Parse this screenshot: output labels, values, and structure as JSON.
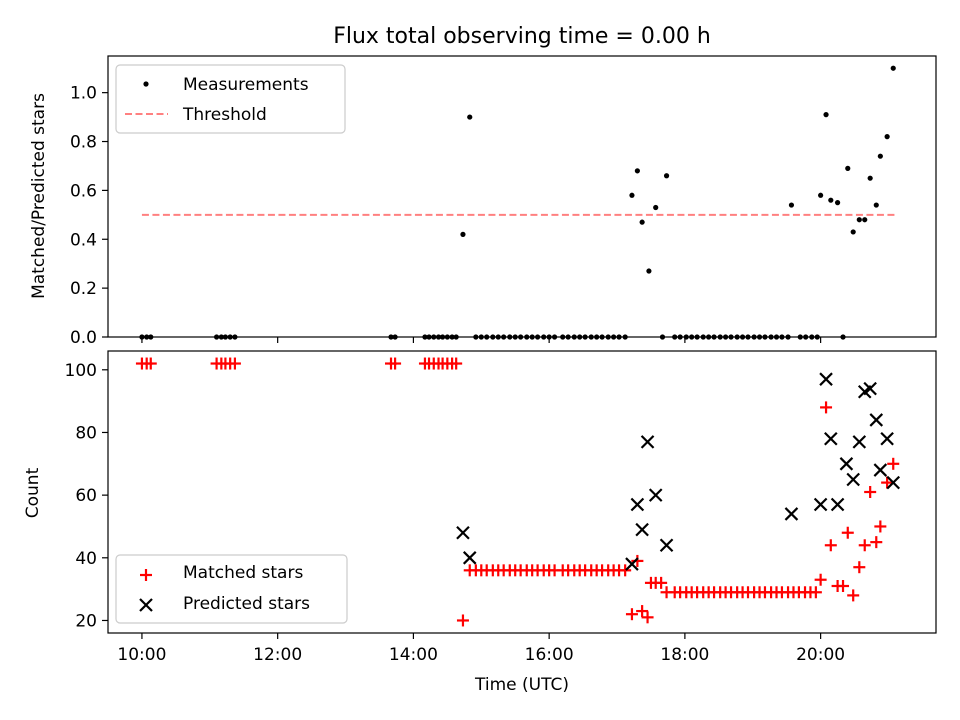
{
  "chart_data": [
    {
      "type": "scatter",
      "title": "Flux total observing time = 0.00 h",
      "xlabel": "",
      "ylabel": "Matched/Predicted stars",
      "xlim": [
        9.5,
        21.7
      ],
      "ylim": [
        0,
        1.15
      ],
      "xticks": [
        10,
        12,
        14,
        16,
        18,
        20
      ],
      "yticks": [
        0.0,
        0.2,
        0.4,
        0.6,
        0.8,
        1.0
      ],
      "ytick_labels": [
        "0.0",
        "0.2",
        "0.4",
        "0.6",
        "0.8",
        "1.0"
      ],
      "legend": {
        "placement": "top-left",
        "entries": [
          "Measurements",
          "Threshold"
        ]
      },
      "threshold": {
        "name": "Threshold",
        "value": 0.5,
        "x_range": [
          10.0,
          21.1
        ],
        "color": "#ff8080"
      },
      "series": [
        {
          "name": "Measurements",
          "color": "#000000",
          "marker": "dot",
          "x": [
            10.0,
            10.07,
            10.13,
            11.1,
            11.17,
            11.23,
            11.3,
            11.37,
            13.67,
            13.73,
            14.17,
            14.23,
            14.3,
            14.37,
            14.43,
            14.5,
            14.57,
            14.63,
            14.73,
            14.83,
            14.92,
            15.0,
            15.08,
            15.17,
            15.25,
            15.33,
            15.42,
            15.5,
            15.58,
            15.67,
            15.75,
            15.83,
            15.92,
            16.0,
            16.08,
            16.2,
            16.28,
            16.37,
            16.45,
            16.53,
            16.62,
            16.7,
            16.78,
            16.87,
            16.95,
            17.03,
            17.12,
            17.22,
            17.3,
            17.37,
            17.47,
            17.57,
            17.67,
            17.73,
            17.85,
            17.93,
            18.02,
            18.1,
            18.18,
            18.27,
            18.35,
            18.43,
            18.52,
            18.6,
            18.68,
            18.77,
            18.85,
            18.93,
            19.02,
            19.1,
            19.18,
            19.27,
            19.35,
            19.43,
            19.52,
            19.57,
            19.7,
            19.78,
            19.87,
            19.95,
            20.0,
            20.08,
            20.15,
            20.25,
            20.33,
            20.4,
            20.48,
            20.57,
            20.65,
            20.73,
            20.82,
            20.88,
            20.98,
            21.07
          ],
          "y": [
            0.0,
            0.0,
            0.0,
            0.0,
            0.0,
            0.0,
            0.0,
            0.0,
            0.0,
            0.0,
            0.0,
            0.0,
            0.0,
            0.0,
            0.0,
            0.0,
            0.0,
            0.0,
            0.42,
            0.9,
            0.0,
            0.0,
            0.0,
            0.0,
            0.0,
            0.0,
            0.0,
            0.0,
            0.0,
            0.0,
            0.0,
            0.0,
            0.0,
            0.0,
            0.0,
            0.0,
            0.0,
            0.0,
            0.0,
            0.0,
            0.0,
            0.0,
            0.0,
            0.0,
            0.0,
            0.0,
            0.0,
            0.58,
            0.68,
            0.47,
            0.27,
            0.53,
            0.0,
            0.66,
            0.0,
            0.0,
            0.0,
            0.0,
            0.0,
            0.0,
            0.0,
            0.0,
            0.0,
            0.0,
            0.0,
            0.0,
            0.0,
            0.0,
            0.0,
            0.0,
            0.0,
            0.0,
            0.0,
            0.0,
            0.0,
            0.54,
            0.0,
            0.0,
            0.0,
            0.0,
            0.58,
            0.91,
            0.56,
            0.55,
            0.0,
            0.69,
            0.43,
            0.48,
            0.48,
            0.65,
            0.54,
            0.74,
            0.82,
            1.1
          ]
        }
      ]
    },
    {
      "type": "scatter",
      "title": "",
      "xlabel": "Time (UTC)",
      "ylabel": "Count",
      "xlim": [
        9.5,
        21.7
      ],
      "ylim": [
        16,
        106
      ],
      "xticks": [
        10,
        12,
        14,
        16,
        18,
        20
      ],
      "xtick_labels": [
        "10:00",
        "12:00",
        "14:00",
        "16:00",
        "18:00",
        "20:00"
      ],
      "yticks": [
        20,
        40,
        60,
        80,
        100
      ],
      "ytick_labels": [
        "20",
        "40",
        "60",
        "80",
        "100"
      ],
      "legend": {
        "placement": "bottom-left",
        "entries": [
          "Matched stars",
          "Predicted stars"
        ]
      },
      "series": [
        {
          "name": "Matched stars",
          "color": "#ff0000",
          "marker": "plus",
          "x": [
            10.0,
            10.07,
            10.13,
            11.1,
            11.17,
            11.23,
            11.3,
            11.37,
            13.67,
            13.73,
            14.17,
            14.23,
            14.3,
            14.37,
            14.43,
            14.5,
            14.57,
            14.63,
            14.73,
            14.83,
            14.92,
            15.0,
            15.08,
            15.17,
            15.25,
            15.33,
            15.42,
            15.5,
            15.58,
            15.67,
            15.75,
            15.83,
            15.92,
            16.0,
            16.08,
            16.2,
            16.28,
            16.37,
            16.45,
            16.53,
            16.62,
            16.7,
            16.78,
            16.87,
            16.95,
            17.03,
            17.12,
            17.22,
            17.3,
            17.37,
            17.45,
            17.5,
            17.57,
            17.65,
            17.73,
            17.85,
            17.93,
            18.02,
            18.1,
            18.18,
            18.27,
            18.35,
            18.43,
            18.52,
            18.6,
            18.68,
            18.77,
            18.85,
            18.93,
            19.02,
            19.1,
            19.18,
            19.27,
            19.35,
            19.43,
            19.52,
            19.6,
            19.68,
            19.77,
            19.85,
            19.93,
            20.0,
            20.08,
            20.15,
            20.25,
            20.33,
            20.4,
            20.48,
            20.57,
            20.65,
            20.73,
            20.82,
            20.88,
            20.98,
            21.07
          ],
          "y": [
            102,
            102,
            102,
            102,
            102,
            102,
            102,
            102,
            102,
            102,
            102,
            102,
            102,
            102,
            102,
            102,
            102,
            102,
            20,
            36,
            36,
            36,
            36,
            36,
            36,
            36,
            36,
            36,
            36,
            36,
            36,
            36,
            36,
            36,
            36,
            36,
            36,
            36,
            36,
            36,
            36,
            36,
            36,
            36,
            36,
            36,
            36,
            22,
            39,
            23,
            21,
            32,
            32,
            32,
            29,
            29,
            29,
            29,
            29,
            29,
            29,
            29,
            29,
            29,
            29,
            29,
            29,
            29,
            29,
            29,
            29,
            29,
            29,
            29,
            29,
            29,
            29,
            29,
            29,
            29,
            29,
            33,
            88,
            44,
            31,
            31,
            48,
            28,
            37,
            44,
            61,
            45,
            50,
            64,
            70
          ]
        },
        {
          "name": "Predicted stars",
          "color": "#000000",
          "marker": "x",
          "x": [
            14.73,
            14.83,
            17.22,
            17.3,
            17.37,
            17.45,
            17.57,
            17.73,
            19.57,
            20.0,
            20.08,
            20.15,
            20.25,
            20.38,
            20.48,
            20.57,
            20.65,
            20.73,
            20.82,
            20.88,
            20.98,
            21.07
          ],
          "y": [
            48,
            40,
            38,
            57,
            49,
            77,
            60,
            44,
            54,
            57,
            97,
            78,
            57,
            70,
            65,
            77,
            93,
            94,
            84,
            68,
            78,
            64
          ]
        }
      ]
    }
  ]
}
